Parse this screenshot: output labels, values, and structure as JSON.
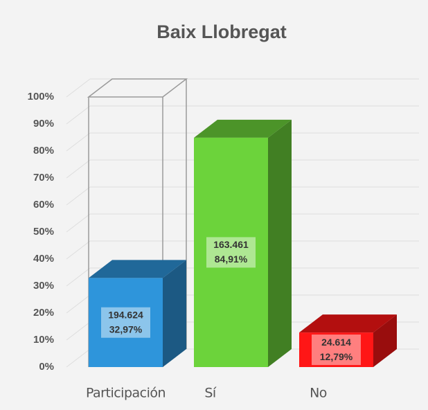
{
  "chart_data": {
    "type": "bar3d",
    "title": "Baix Llobregat",
    "categories": [
      "Participación",
      "Sí",
      "No"
    ],
    "values": [
      32.97,
      84.91,
      12.79
    ],
    "value_labels": [
      "32,97%",
      "84,91%",
      "12,79%"
    ],
    "counts": [
      194624,
      163461,
      24614
    ],
    "count_labels": [
      "194.624",
      "163.461",
      "24.614"
    ],
    "colors": [
      "#2e95db",
      "#6cd33b",
      "#ff1616"
    ],
    "ylim": [
      0,
      100
    ],
    "yticks": [
      {
        "value": 0,
        "label": "0%"
      },
      {
        "value": 10,
        "label": "10%"
      },
      {
        "value": 20,
        "label": "20%"
      },
      {
        "value": 30,
        "label": "30%"
      },
      {
        "value": 40,
        "label": "40%"
      },
      {
        "value": 50,
        "label": "50%"
      },
      {
        "value": 60,
        "label": "60%"
      },
      {
        "value": 70,
        "label": "70%"
      },
      {
        "value": 80,
        "label": "80%"
      },
      {
        "value": 90,
        "label": "90%"
      },
      {
        "value": 100,
        "label": "100%"
      }
    ],
    "grid": true
  }
}
